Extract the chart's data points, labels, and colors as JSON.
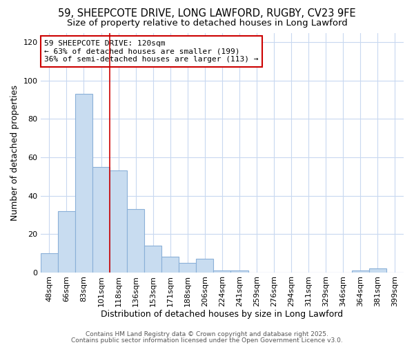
{
  "title_line1": "59, SHEEPCOTE DRIVE, LONG LAWFORD, RUGBY, CV23 9FE",
  "title_line2": "Size of property relative to detached houses in Long Lawford",
  "xlabel": "Distribution of detached houses by size in Long Lawford",
  "ylabel": "Number of detached properties",
  "categories": [
    "48sqm",
    "66sqm",
    "83sqm",
    "101sqm",
    "118sqm",
    "136sqm",
    "153sqm",
    "171sqm",
    "188sqm",
    "206sqm",
    "224sqm",
    "241sqm",
    "259sqm",
    "276sqm",
    "294sqm",
    "311sqm",
    "329sqm",
    "346sqm",
    "364sqm",
    "381sqm",
    "399sqm"
  ],
  "values": [
    10,
    32,
    93,
    55,
    53,
    33,
    14,
    8,
    5,
    7,
    1,
    1,
    0,
    0,
    0,
    0,
    0,
    0,
    1,
    2,
    0
  ],
  "bar_color": "#c8dcf0",
  "bar_edge_color": "#8ab0d8",
  "bar_linewidth": 0.8,
  "vline_x": 3.5,
  "vline_color": "#cc0000",
  "vline_linewidth": 1.2,
  "annotation_text": "59 SHEEPCOTE DRIVE: 120sqm\n← 63% of detached houses are smaller (199)\n36% of semi-detached houses are larger (113) →",
  "annotation_box_color": "white",
  "annotation_box_edgecolor": "#cc0000",
  "ylim": [
    0,
    125
  ],
  "yticks": [
    0,
    20,
    40,
    60,
    80,
    100,
    120
  ],
  "plot_bg_color": "#ffffff",
  "fig_bg_color": "#ffffff",
  "grid_color": "#c8d8f0",
  "footer_line1": "Contains HM Land Registry data © Crown copyright and database right 2025.",
  "footer_line2": "Contains public sector information licensed under the Open Government Licence v3.0.",
  "title_fontsize": 10.5,
  "subtitle_fontsize": 9.5,
  "label_fontsize": 9,
  "tick_fontsize": 8,
  "annotation_fontsize": 8,
  "footer_fontsize": 6.5
}
